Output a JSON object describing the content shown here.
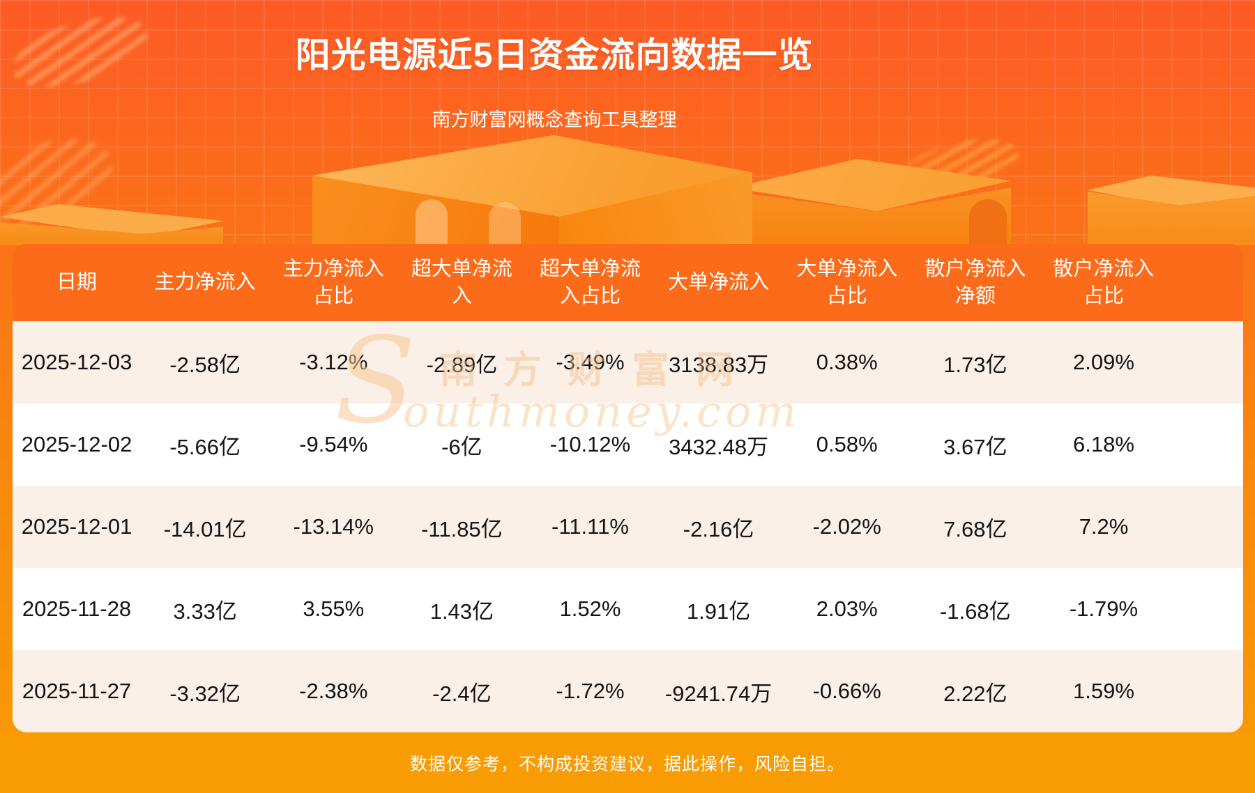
{
  "page": {
    "title": "阳光电源近5日资金流向数据一览",
    "subtitle": "南方财富网概念查询工具整理",
    "footer_disclaimer": "数据仅参考，不构成投资建议，据此操作，风险自担。",
    "watermark": {
      "initial": "S",
      "cn": "南方财富网",
      "en": "outhmoney.com"
    }
  },
  "colors": {
    "bg_top": "#fc5a26",
    "bg_bottom": "#f99c04",
    "header_bg": "#fb6b1a",
    "row_alt": "#faf0e7",
    "footer_bg": "#f99c04",
    "text_dark": "#141414",
    "text_light": "#ffffff"
  },
  "table": {
    "headers_display": [
      "日期",
      "主力净流入",
      "主力净流入\n占比",
      "超大单净流\n入",
      "超大单净流\n入占比",
      "大单净流入",
      "大单净流入\n占比",
      "散户净流入\n净额",
      "散户净流入\n占比"
    ],
    "rows": [
      [
        "2025-12-03",
        "-2.58亿",
        "-3.12%",
        "-2.89亿",
        "-3.49%",
        "3138.83万",
        "0.38%",
        "1.73亿",
        "2.09%"
      ],
      [
        "2025-12-02",
        "-5.66亿",
        "-9.54%",
        "-6亿",
        "-10.12%",
        "3432.48万",
        "0.58%",
        "3.67亿",
        "6.18%"
      ],
      [
        "2025-12-01",
        "-14.01亿",
        "-13.14%",
        "-11.85亿",
        "-11.11%",
        "-2.16亿",
        "-2.02%",
        "7.68亿",
        "7.2%"
      ],
      [
        "2025-11-28",
        "3.33亿",
        "3.55%",
        "1.43亿",
        "1.52%",
        "1.91亿",
        "2.03%",
        "-1.68亿",
        "-1.79%"
      ],
      [
        "2025-11-27",
        "-3.32亿",
        "-2.38%",
        "-2.4亿",
        "-1.72%",
        "-9241.74万",
        "-0.66%",
        "2.22亿",
        "1.59%"
      ]
    ]
  },
  "chart_data": {
    "type": "table",
    "title": "阳光电源近5日资金流向数据一览",
    "columns": [
      "日期",
      "主力净流入",
      "主力净流入占比",
      "超大单净流入",
      "超大单净流入占比",
      "大单净流入",
      "大单净流入占比",
      "散户净流入净额",
      "散户净流入占比"
    ],
    "rows": [
      [
        "2025-12-03",
        "-2.58亿",
        "-3.12%",
        "-2.89亿",
        "-3.49%",
        "3138.83万",
        "0.38%",
        "1.73亿",
        "2.09%"
      ],
      [
        "2025-12-02",
        "-5.66亿",
        "-9.54%",
        "-6亿",
        "-10.12%",
        "3432.48万",
        "0.58%",
        "3.67亿",
        "6.18%"
      ],
      [
        "2025-12-01",
        "-14.01亿",
        "-13.14%",
        "-11.85亿",
        "-11.11%",
        "-2.16亿",
        "-2.02%",
        "7.68亿",
        "7.2%"
      ],
      [
        "2025-11-28",
        "3.33亿",
        "3.55%",
        "1.43亿",
        "1.52%",
        "1.91亿",
        "2.03%",
        "-1.68亿",
        "-1.79%"
      ],
      [
        "2025-11-27",
        "-3.32亿",
        "-2.38%",
        "-2.4亿",
        "-1.72%",
        "-9241.74万",
        "-0.66%",
        "2.22亿",
        "1.59%"
      ]
    ]
  }
}
